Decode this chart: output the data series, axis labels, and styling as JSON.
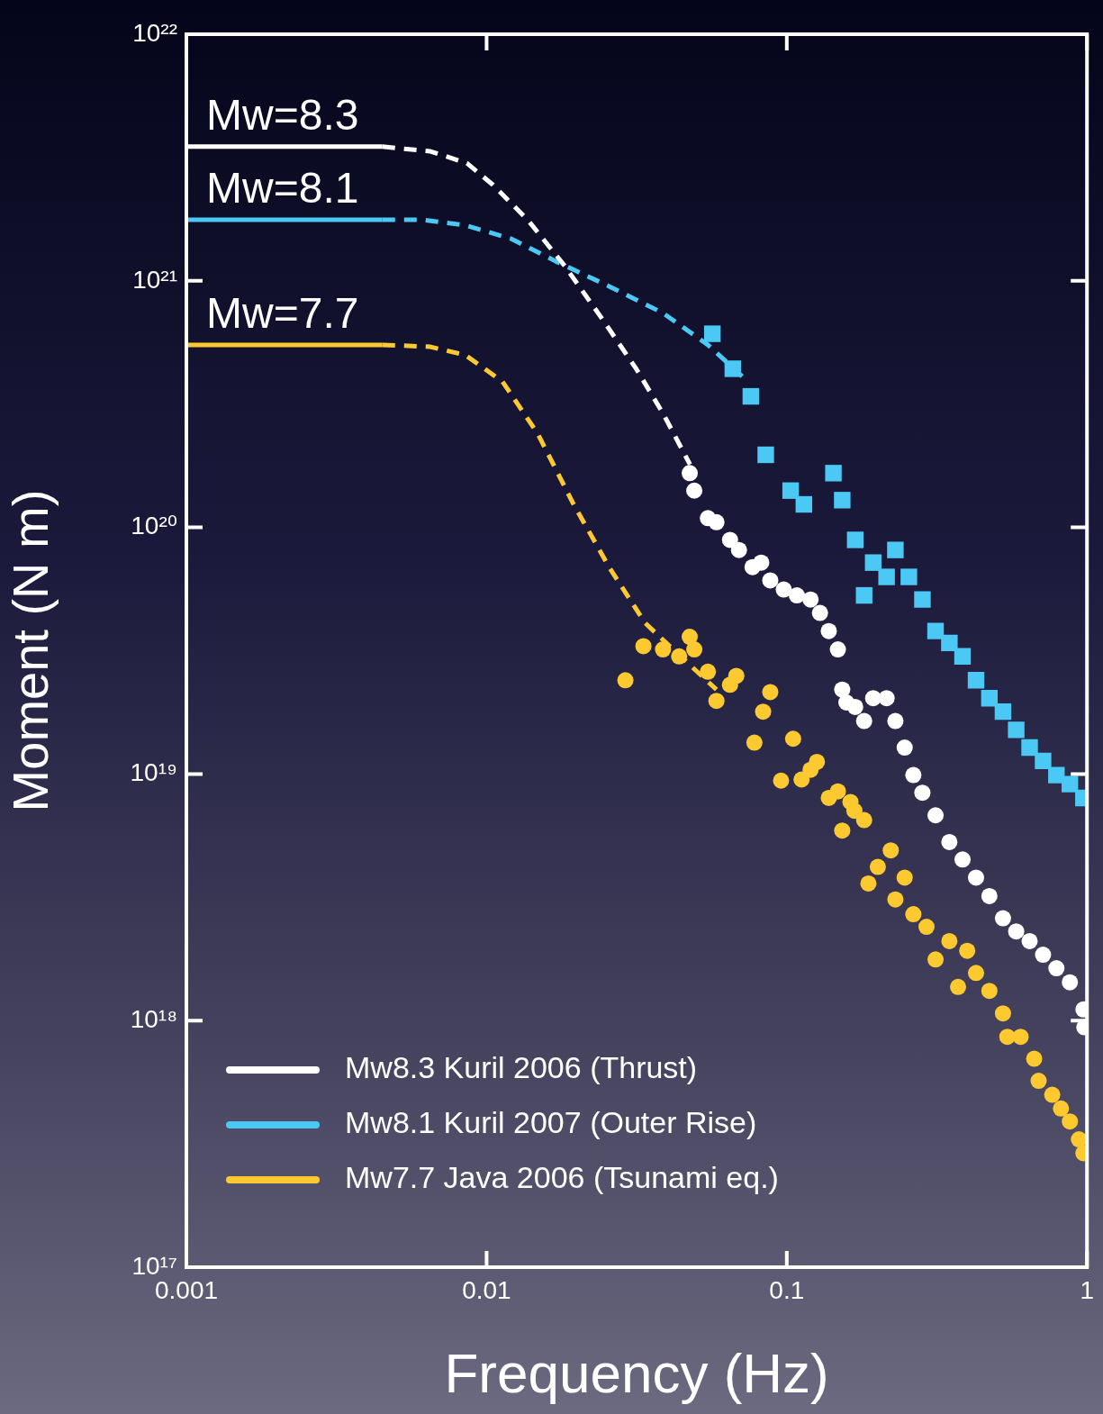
{
  "chart_data": {
    "type": "scatter",
    "xlabel": "Frequency (Hz)",
    "ylabel": "Moment (N m)",
    "log": "xy",
    "xlim": [
      0.001,
      1
    ],
    "ylim": [
      1e+17,
      1e+22
    ],
    "xticks": [
      0.001,
      0.01,
      0.1,
      1
    ],
    "yticks": [
      {
        "value": 1e+17,
        "label": "10¹⁷"
      },
      {
        "value": 1e+18,
        "label": "10¹⁸"
      },
      {
        "value": 1e+19,
        "label": "10¹⁹"
      },
      {
        "value": 1e+20,
        "label": "10²⁰"
      },
      {
        "value": 1e+21,
        "label": "10²¹"
      },
      {
        "value": 1e+22,
        "label": "10²²"
      }
    ],
    "legend": "bottom left",
    "annotations": [
      {
        "text": "Mw=8.3",
        "y": 3.5e+21
      },
      {
        "text": "Mw=8.1",
        "y": 1.77e+21
      },
      {
        "text": "Mw=7.7",
        "y": 5.5e+20
      }
    ],
    "series": [
      {
        "name": "Mw8.3 Kuril 2006 (Thrust)",
        "type": "line",
        "line_style": "solid",
        "marker": "none",
        "color": "#ffffff",
        "x": [
          0.001,
          0.0045
        ],
        "values": [
          3.5e+21,
          3.5e+21
        ]
      },
      {
        "name": "Mw8.1 Kuril 2007 (Outer Rise)",
        "type": "line",
        "line_style": "solid",
        "marker": "none",
        "color": "#4cc8f4",
        "x": [
          0.001,
          0.0045
        ],
        "values": [
          1.77e+21,
          1.77e+21
        ]
      },
      {
        "name": "Mw7.7 Java 2006 (Tsunami eq.)",
        "type": "line",
        "line_style": "solid",
        "marker": "none",
        "color": "#fdc931",
        "x": [
          0.001,
          0.0045
        ],
        "values": [
          5.5e+20,
          5.5e+20
        ]
      },
      {
        "type": "line",
        "line_style": "dashed",
        "marker": "none",
        "color": "#ffffff",
        "x": [
          0.0045,
          0.0065,
          0.0086,
          0.0105,
          0.0138,
          0.0182,
          0.0239,
          0.0315,
          0.0387,
          0.0476
        ],
        "values": [
          3.5e+21,
          3.35e+21,
          3e+21,
          2.45e+21,
          1.75e+21,
          1.15e+21,
          7.2e+20,
          4.4e+20,
          2.9e+20,
          1.8e+20
        ]
      },
      {
        "type": "line",
        "line_style": "dashed",
        "marker": "none",
        "color": "#4cc8f4",
        "x": [
          0.0045,
          0.0061,
          0.0085,
          0.0121,
          0.017,
          0.0256,
          0.0387,
          0.0546,
          0.0743
        ],
        "values": [
          1.77e+21,
          1.77e+21,
          1.68e+21,
          1.48e+21,
          1.2e+21,
          9.5e+20,
          7.4e+20,
          5.5e+20,
          3.9e+20
        ]
      },
      {
        "type": "line",
        "line_style": "dashed",
        "marker": "none",
        "color": "#fdc931",
        "x": [
          0.0045,
          0.0065,
          0.0085,
          0.0113,
          0.0148,
          0.0195,
          0.0256,
          0.0337,
          0.0443,
          0.0583
        ],
        "values": [
          5.5e+20,
          5.4e+20,
          5e+20,
          3.9e+20,
          2.4e+20,
          1.24e+20,
          6.9e+19,
          4.1e+19,
          3e+19,
          2.2e+19
        ]
      },
      {
        "type": "scatter",
        "marker": "circle",
        "color": "#ffffff",
        "x": [
          0.0475,
          0.0492,
          0.0546,
          0.0583,
          0.0647,
          0.0693,
          0.0769,
          0.0822,
          0.0881,
          0.0977,
          0.108,
          0.12,
          0.129,
          0.138,
          0.148,
          0.153,
          0.158,
          0.169,
          0.181,
          0.194,
          0.215,
          0.23,
          0.247,
          0.264,
          0.283,
          0.313,
          0.348,
          0.385,
          0.427,
          0.473,
          0.525,
          0.581,
          0.644,
          0.714,
          0.791,
          0.877,
          0.973,
          0.98
        ],
        "values": [
          1.66e+20,
          1.41e+20,
          1.09e+20,
          1.05e+20,
          8.9e+19,
          8.1e+19,
          6.9e+19,
          7.2e+19,
          6.1e+19,
          5.6e+19,
          5.3e+19,
          5.1e+19,
          4.5e+19,
          3.8e+19,
          3.2e+19,
          2.2e+19,
          1.95e+19,
          1.87e+19,
          1.64e+19,
          2.03e+19,
          2.03e+19,
          1.64e+19,
          1.28e+19,
          9.9e+18,
          8.4e+18,
          6.8e+18,
          5.3e+18,
          4.5e+18,
          3.8e+18,
          3.2e+18,
          2.6e+18,
          2.3e+18,
          2.1e+18,
          1.85e+18,
          1.63e+18,
          1.43e+18,
          1.11e+18,
          9.4e+17
        ]
      },
      {
        "type": "scatter",
        "marker": "square",
        "color": "#4cc8f4",
        "x": [
          0.0565,
          0.0661,
          0.0759,
          0.0851,
          0.103,
          0.114,
          0.143,
          0.153,
          0.169,
          0.181,
          0.194,
          0.215,
          0.23,
          0.255,
          0.283,
          0.313,
          0.348,
          0.385,
          0.427,
          0.473,
          0.525,
          0.581,
          0.644,
          0.714,
          0.791,
          0.877,
          0.973
        ],
        "values": [
          6.1e+20,
          4.4e+20,
          3.4e+20,
          1.97e+20,
          1.41e+20,
          1.24e+20,
          1.66e+20,
          1.29e+20,
          8.9e+19,
          5.3e+19,
          7.2e+19,
          6.3e+19,
          8.1e+19,
          6.3e+19,
          5.1e+19,
          3.8e+19,
          3.4e+19,
          3e+19,
          2.4e+19,
          2.03e+19,
          1.79e+19,
          1.51e+19,
          1.28e+19,
          1.13e+19,
          9.9e+18,
          9.1e+18,
          8e+18
        ]
      },
      {
        "type": "scatter",
        "marker": "circle",
        "color": "#fdc931",
        "x": [
          0.029,
          0.0333,
          0.0387,
          0.0438,
          0.0475,
          0.0492,
          0.0546,
          0.0583,
          0.0647,
          0.0679,
          0.078,
          0.0834,
          0.0881,
          0.0957,
          0.105,
          0.112,
          0.12,
          0.126,
          0.138,
          0.148,
          0.153,
          0.163,
          0.168,
          0.181,
          0.187,
          0.201,
          0.222,
          0.23,
          0.247,
          0.264,
          0.292,
          0.313,
          0.348,
          0.372,
          0.399,
          0.427,
          0.473,
          0.525,
          0.543,
          0.601,
          0.667,
          0.69,
          0.766,
          0.819,
          0.877,
          0.94,
          0.973
        ],
        "values": [
          2.4e+19,
          3.3e+19,
          3.2e+19,
          3e+19,
          3.6e+19,
          3.2e+19,
          2.6e+19,
          1.98e+19,
          2.3e+19,
          2.5e+19,
          1.34e+19,
          1.79e+19,
          2.15e+19,
          9.4e+18,
          1.39e+19,
          9.5e+18,
          1.04e+19,
          1.12e+19,
          8e+18,
          8.5e+18,
          5.9e+18,
          7.7e+18,
          7.1e+18,
          6.5e+18,
          3.6e+18,
          4.2e+18,
          4.9e+18,
          3.1e+18,
          3.8e+18,
          2.7e+18,
          2.4e+18,
          1.77e+18,
          2.1e+18,
          1.37e+18,
          1.92e+18,
          1.56e+18,
          1.32e+18,
          1.07e+18,
          8.6e+17,
          8.6e+17,
          7e+17,
          5.7e+17,
          5e+17,
          4.4e+17,
          3.9e+17,
          3.3e+17,
          2.9e+17
        ]
      }
    ]
  }
}
